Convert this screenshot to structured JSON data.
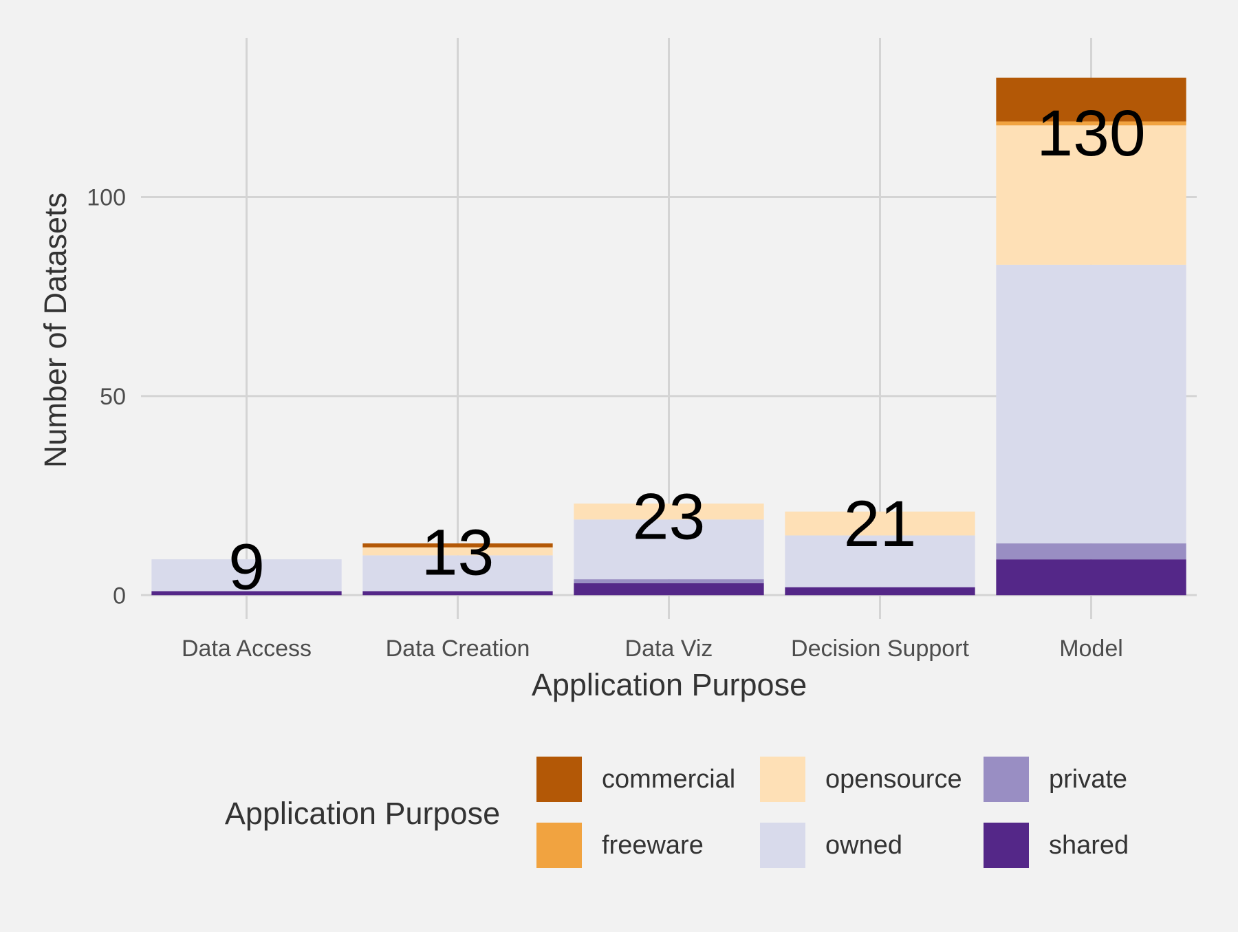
{
  "chart_data": {
    "type": "bar",
    "stacked": true,
    "title": "",
    "xlabel": "Application Purpose",
    "ylabel": "Number of Datasets",
    "ylim": [
      -6,
      140
    ],
    "yticks": [
      0,
      50,
      100
    ],
    "grid": true,
    "legend_title": "Application Purpose",
    "legend_position": "bottom",
    "categories": [
      "Data Access",
      "Data Creation",
      "Data Viz",
      "Decision Support",
      "Model"
    ],
    "totals": [
      9,
      13,
      23,
      21,
      130
    ],
    "series": [
      {
        "name": "shared",
        "color": "#542788",
        "values": [
          1,
          1,
          3,
          2,
          9
        ]
      },
      {
        "name": "private",
        "color": "#998ec3",
        "values": [
          0,
          0,
          1,
          0,
          4
        ]
      },
      {
        "name": "owned",
        "color": "#d8daeb",
        "values": [
          8,
          9,
          15,
          13,
          70
        ]
      },
      {
        "name": "opensource",
        "color": "#fee0b6",
        "values": [
          0,
          2,
          4,
          6,
          35
        ]
      },
      {
        "name": "freeware",
        "color": "#f1a340",
        "values": [
          0,
          0,
          0,
          0,
          1
        ]
      },
      {
        "name": "commercial",
        "color": "#b35806",
        "values": [
          0,
          1,
          0,
          0,
          11
        ]
      }
    ]
  }
}
